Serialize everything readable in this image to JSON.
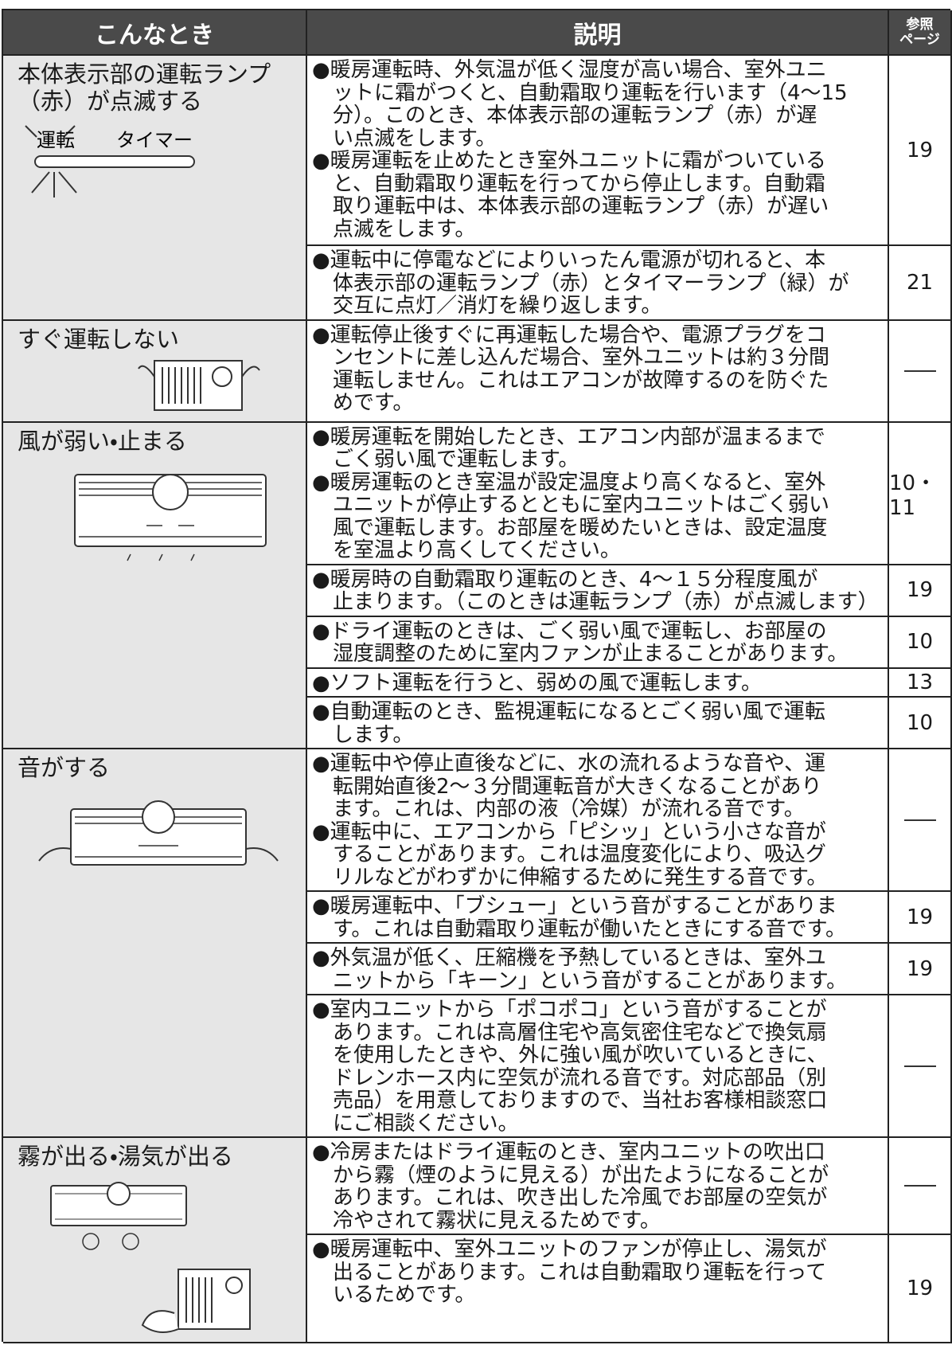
{
  "header": {
    "situation": "こんなとき",
    "description": "説明",
    "reference_page": "参照\nページ"
  },
  "rows": [
    {
      "situation": "本体表示部の運転ランプ\n（赤）が点滅する",
      "illustration_labels": [
        "運転",
        "タイマー"
      ],
      "items": [
        {
          "bullets": [
            [
              "●暖房運転時、外気温が低く湿度が高い場合、室外ユニ",
              "ットに霜がつくと、自動霜取り運転を行います（4～15",
              "分）。このとき、本体表示部の運転ランプ（赤）が遅",
              "い点滅をします。"
            ],
            [
              "●暖房運転を止めたとき室外ユニットに霜がついている",
              "と、自動霜取り運転を行ってから停止します。自動霜",
              "取り運転中は、本体表示部の運転ランプ（赤）が遅い",
              "点滅をします。"
            ]
          ],
          "page": "19"
        },
        {
          "bullets": [
            [
              "●運転中に停電などによりいったん電源が切れると、本",
              "体表示部の運転ランプ（赤）とタイマーランプ（緑）が",
              "交互に点灯／消灯を繰り返します。"
            ]
          ],
          "page": "21"
        }
      ]
    },
    {
      "situation": "すぐ運転しない",
      "items": [
        {
          "bullets": [
            [
              "●運転停止後すぐに再運転した場合や、電源プラグをコ",
              "ンセントに差し込んだ場合、室外ユニットは約３分間",
              "運転しません。これはエアコンが故障するのを防ぐた",
              "めです。"
            ]
          ],
          "page": null
        }
      ]
    },
    {
      "situation": "風が弱い・止まる",
      "items": [
        {
          "bullets": [
            [
              "●暖房運転を開始したとき、エアコン内部が温まるまで",
              "ごく弱い風で運転します。"
            ],
            [
              "●暖房運転のとき室温が設定温度より高くなると、室外",
              "ユニットが停止するとともに室内ユニットはごく弱い",
              "風で運転します。お部屋を暖めたいときは、設定温度",
              "を室温より高くしてください。"
            ]
          ],
          "page": "10・11"
        },
        {
          "bullets": [
            [
              "●暖房時の自動霜取り運転のとき、4～１５分程度風が",
              "止まります。（このときは運転ランプ（赤）が点滅します）"
            ]
          ],
          "page": "19"
        },
        {
          "bullets": [
            [
              "●ドライ運転のときは、ごく弱い風で運転し、お部屋の",
              "湿度調整のために室内ファンが止まることがあります。"
            ]
          ],
          "page": "10"
        },
        {
          "bullets": [
            [
              "●ソフト運転を行うと、弱めの風で運転します。"
            ]
          ],
          "page": "13"
        },
        {
          "bullets": [
            [
              "●自動運転のとき、監視運転になるとごく弱い風で運転",
              "します。"
            ]
          ],
          "page": "10"
        }
      ]
    },
    {
      "situation": "音がする",
      "items": [
        {
          "bullets": [
            [
              "●運転中や停止直後などに、水の流れるような音や、運",
              "転開始直後2～３分間運転音が大きくなることがあり",
              "ます。これは、内部の液（冷媒）が流れる音です。"
            ],
            [
              "●運転中に、エアコンから「ピシッ」という小さな音が",
              "することがあります。これは温度変化により、吸込グ",
              "リルなどがわずかに伸縮するために発生する音です。"
            ]
          ],
          "page": null
        },
        {
          "bullets": [
            [
              "●暖房運転中、「ブシュー」という音がすることがありま",
              "す。これは自動霜取り運転が働いたときにする音です。"
            ]
          ],
          "page": "19"
        },
        {
          "bullets": [
            [
              "●外気温が低く、圧縮機を予熱しているときは、室外ユ",
              "ニットから「キーン」という音がすることがあります。"
            ]
          ],
          "page": "19"
        },
        {
          "bullets": [
            [
              "●室内ユニットから「ポコポコ」という音がすることが",
              "あります。これは高層住宅や高気密住宅などで換気扇",
              "を使用したときや、外に強い風が吹いているときに、",
              "ドレンホース内に空気が流れる音です。対応部品（別",
              "売品）を用意しておりますので、当社お客様相談窓口",
              "にご相談ください。"
            ]
          ],
          "page": null
        }
      ]
    },
    {
      "situation": "霧が出る・湯気が出る",
      "items": [
        {
          "bullets": [
            [
              "●冷房またはドライ運転のとき、室内ユニットの吹出口",
              "から霧（煙のように見える）が出たようになることが",
              "あります。これは、吹き出した冷風でお部屋の空気が",
              "冷やされて霧状に見えるためです。"
            ]
          ],
          "page": null
        },
        {
          "bullets": [
            [
              "●暖房運転中、室外ユニットのファンが停止し、湯気が",
              "出ることがあります。これは自動霜取り運転を行って",
              "いるためです。"
            ]
          ],
          "page": "19"
        }
      ]
    }
  ]
}
